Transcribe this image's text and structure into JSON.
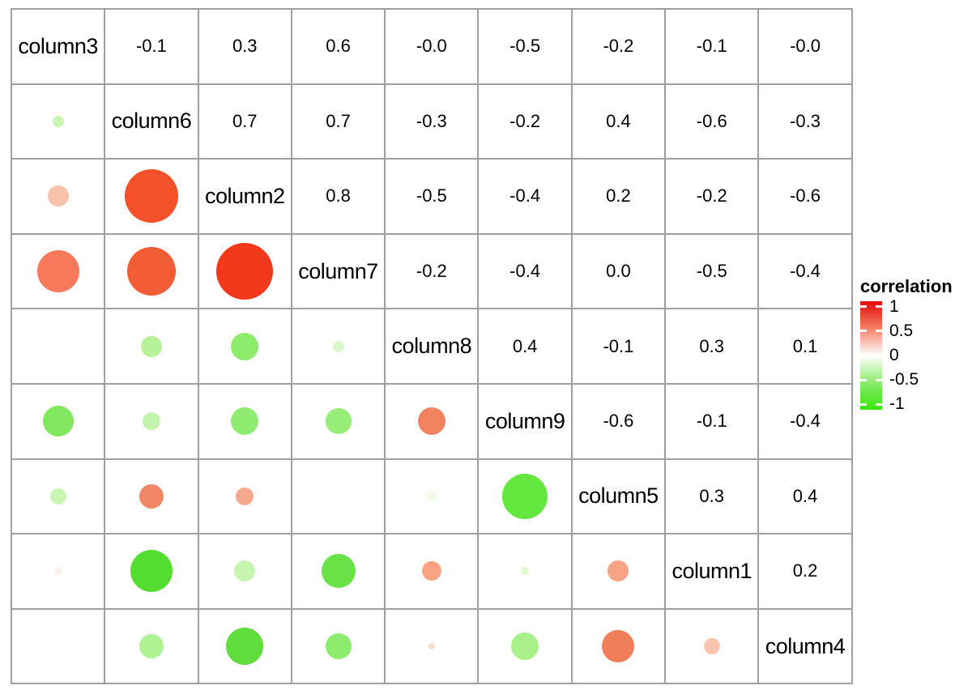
{
  "legend": {
    "title": "correlation",
    "ticks": [
      "1",
      "0.5",
      "0",
      "-0.5",
      "-1"
    ],
    "tick_positions_pct": [
      5,
      27.5,
      50,
      72.5,
      95
    ],
    "gradient_stops": [
      "#e30b0b",
      "#f58066",
      "#ffffff",
      "#8cea6d",
      "#35e60e"
    ],
    "color_positive": "#e30b0b",
    "color_zero": "#ffffff",
    "color_negative": "#35e60e"
  },
  "chart_data": {
    "type": "heatmap",
    "subtype": "correlation-matrix-bubble",
    "title": "",
    "legend_title": "correlation",
    "scale_range": [
      -1,
      1
    ],
    "variables": [
      "column3",
      "column6",
      "column2",
      "column7",
      "column8",
      "column9",
      "column5",
      "column1",
      "column4"
    ],
    "upper_values": [
      {
        "r": 1,
        "c": 2,
        "t": "-0.1",
        "v": -0.1
      },
      {
        "r": 1,
        "c": 3,
        "t": "0.3",
        "v": 0.3
      },
      {
        "r": 1,
        "c": 4,
        "t": "0.6",
        "v": 0.6
      },
      {
        "r": 1,
        "c": 5,
        "t": "-0.0",
        "v": -0.0
      },
      {
        "r": 1,
        "c": 6,
        "t": "-0.5",
        "v": -0.5
      },
      {
        "r": 1,
        "c": 7,
        "t": "-0.2",
        "v": -0.2
      },
      {
        "r": 1,
        "c": 8,
        "t": "-0.1",
        "v": -0.1
      },
      {
        "r": 1,
        "c": 9,
        "t": "-0.0",
        "v": -0.0
      },
      {
        "r": 2,
        "c": 3,
        "t": "0.7",
        "v": 0.7
      },
      {
        "r": 2,
        "c": 4,
        "t": "0.7",
        "v": 0.7
      },
      {
        "r": 2,
        "c": 5,
        "t": "-0.3",
        "v": -0.3
      },
      {
        "r": 2,
        "c": 6,
        "t": "-0.2",
        "v": -0.2
      },
      {
        "r": 2,
        "c": 7,
        "t": "0.4",
        "v": 0.4
      },
      {
        "r": 2,
        "c": 8,
        "t": "-0.6",
        "v": -0.6
      },
      {
        "r": 2,
        "c": 9,
        "t": "-0.3",
        "v": -0.3
      },
      {
        "r": 3,
        "c": 4,
        "t": "0.8",
        "v": 0.8
      },
      {
        "r": 3,
        "c": 5,
        "t": "-0.5",
        "v": -0.5
      },
      {
        "r": 3,
        "c": 6,
        "t": "-0.4",
        "v": -0.4
      },
      {
        "r": 3,
        "c": 7,
        "t": "0.2",
        "v": 0.2
      },
      {
        "r": 3,
        "c": 8,
        "t": "-0.2",
        "v": -0.2
      },
      {
        "r": 3,
        "c": 9,
        "t": "-0.6",
        "v": -0.6
      },
      {
        "r": 4,
        "c": 5,
        "t": "-0.2",
        "v": -0.2
      },
      {
        "r": 4,
        "c": 6,
        "t": "-0.4",
        "v": -0.4
      },
      {
        "r": 4,
        "c": 7,
        "t": "0.0",
        "v": 0.0
      },
      {
        "r": 4,
        "c": 8,
        "t": "-0.5",
        "v": -0.5
      },
      {
        "r": 4,
        "c": 9,
        "t": "-0.4",
        "v": -0.4
      },
      {
        "r": 5,
        "c": 6,
        "t": "0.4",
        "v": 0.4
      },
      {
        "r": 5,
        "c": 7,
        "t": "-0.1",
        "v": -0.1
      },
      {
        "r": 5,
        "c": 8,
        "t": "0.3",
        "v": 0.3
      },
      {
        "r": 5,
        "c": 9,
        "t": "0.1",
        "v": 0.1
      },
      {
        "r": 6,
        "c": 7,
        "t": "-0.6",
        "v": -0.6
      },
      {
        "r": 6,
        "c": 8,
        "t": "-0.1",
        "v": -0.1
      },
      {
        "r": 6,
        "c": 9,
        "t": "-0.4",
        "v": -0.4
      },
      {
        "r": 7,
        "c": 8,
        "t": "0.3",
        "v": 0.3
      },
      {
        "r": 7,
        "c": 9,
        "t": "0.4",
        "v": 0.4
      },
      {
        "r": 8,
        "c": 9,
        "t": "0.2",
        "v": 0.2
      }
    ],
    "lower_circles": [
      {
        "r": 2,
        "c": 1,
        "v": -0.1,
        "rad": 7,
        "color": "#c9f7b2"
      },
      {
        "r": 3,
        "c": 1,
        "v": 0.3,
        "rad": 13,
        "color": "#f9c2ab"
      },
      {
        "r": 3,
        "c": 2,
        "v": 0.7,
        "rad": 33,
        "color": "#f4502a"
      },
      {
        "r": 4,
        "c": 1,
        "v": 0.6,
        "rad": 26,
        "color": "#f5795a"
      },
      {
        "r": 4,
        "c": 2,
        "v": 0.7,
        "rad": 30,
        "color": "#f15c35"
      },
      {
        "r": 4,
        "c": 3,
        "v": 0.8,
        "rad": 35,
        "color": "#f2391c"
      },
      {
        "r": 5,
        "c": 2,
        "v": -0.3,
        "rad": 13,
        "color": "#b5f29a"
      },
      {
        "r": 5,
        "c": 3,
        "v": -0.5,
        "rad": 17,
        "color": "#8deb6c"
      },
      {
        "r": 5,
        "c": 4,
        "v": -0.2,
        "rad": 7,
        "color": "#d9f9ca"
      },
      {
        "r": 6,
        "c": 1,
        "v": -0.5,
        "rad": 19,
        "color": "#80e75f"
      },
      {
        "r": 6,
        "c": 2,
        "v": -0.2,
        "rad": 11,
        "color": "#c3f4ae"
      },
      {
        "r": 6,
        "c": 3,
        "v": -0.4,
        "rad": 17,
        "color": "#8fec70"
      },
      {
        "r": 6,
        "c": 4,
        "v": -0.4,
        "rad": 16,
        "color": "#96ed78"
      },
      {
        "r": 6,
        "c": 5,
        "v": 0.4,
        "rad": 17,
        "color": "#f18260"
      },
      {
        "r": 7,
        "c": 1,
        "v": -0.2,
        "rad": 10,
        "color": "#c7f6b2"
      },
      {
        "r": 7,
        "c": 2,
        "v": 0.4,
        "rad": 15,
        "color": "#f28765"
      },
      {
        "r": 7,
        "c": 3,
        "v": 0.2,
        "rad": 11,
        "color": "#f7a98c"
      },
      {
        "r": 7,
        "c": 5,
        "v": -0.1,
        "rad": 7,
        "color": "#f0fbea"
      },
      {
        "r": 7,
        "c": 6,
        "v": -0.6,
        "rad": 28,
        "color": "#64e840"
      },
      {
        "r": 8,
        "c": 1,
        "v": -0.1,
        "rad": 5,
        "color": "#fdf1ec"
      },
      {
        "r": 8,
        "c": 2,
        "v": -0.6,
        "rad": 26,
        "color": "#54dd30"
      },
      {
        "r": 8,
        "c": 3,
        "v": -0.2,
        "rad": 13,
        "color": "#c6f5b0"
      },
      {
        "r": 8,
        "c": 4,
        "v": -0.5,
        "rad": 21,
        "color": "#69e248"
      },
      {
        "r": 8,
        "c": 5,
        "v": 0.3,
        "rad": 12,
        "color": "#f9a383"
      },
      {
        "r": 8,
        "c": 6,
        "v": -0.1,
        "rad": 5,
        "color": "#dcfacf"
      },
      {
        "r": 8,
        "c": 7,
        "v": 0.3,
        "rad": 13,
        "color": "#f7a486"
      },
      {
        "r": 9,
        "c": 2,
        "v": -0.3,
        "rad": 15,
        "color": "#aef293"
      },
      {
        "r": 9,
        "c": 3,
        "v": -0.6,
        "rad": 23,
        "color": "#60dc3d"
      },
      {
        "r": 9,
        "c": 4,
        "v": -0.4,
        "rad": 16,
        "color": "#8deb6e"
      },
      {
        "r": 9,
        "c": 5,
        "v": 0.1,
        "rad": 4,
        "color": "#fbdbd0"
      },
      {
        "r": 9,
        "c": 6,
        "v": -0.4,
        "rad": 17,
        "color": "#a7f08a"
      },
      {
        "r": 9,
        "c": 7,
        "v": 0.4,
        "rad": 20,
        "color": "#f07e58"
      },
      {
        "r": 9,
        "c": 8,
        "v": 0.2,
        "rad": 10,
        "color": "#f9c4ae"
      }
    ]
  }
}
